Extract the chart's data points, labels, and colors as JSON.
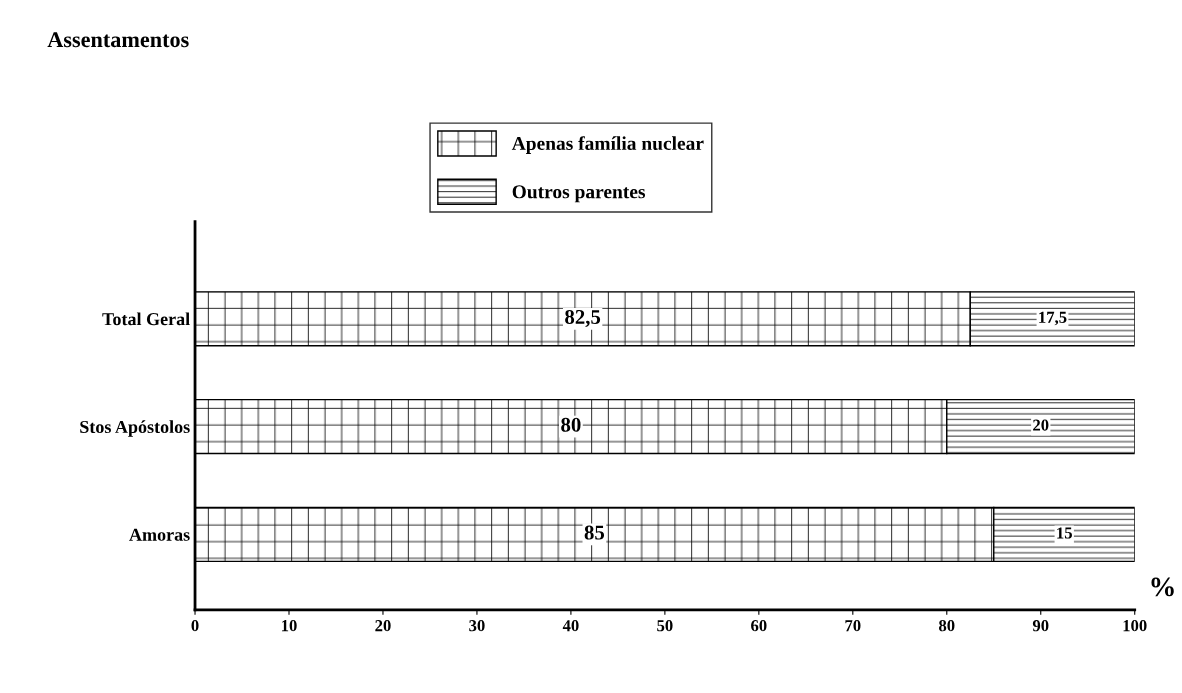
{
  "chart_data": {
    "type": "bar",
    "orientation": "horizontal",
    "stacked": true,
    "annotations": [
      "Assentamentos"
    ],
    "xlabel": "%",
    "categories": [
      "Total Geral",
      "Stos Apóstolos",
      "Amoras"
    ],
    "series": [
      {
        "name": "Apenas família nuclear",
        "color": "#000000",
        "values": [
          82.5,
          80,
          85
        ],
        "value_labels": [
          "82,5",
          "80",
          "85"
        ]
      },
      {
        "name": "Outros parentes",
        "color": "#000000",
        "values": [
          17.5,
          20,
          15
        ],
        "value_labels": [
          "17,5",
          "20",
          "15"
        ]
      }
    ],
    "xlim": [
      0,
      100
    ],
    "xticks": [
      0,
      10,
      20,
      30,
      40,
      50,
      60,
      70,
      80,
      90,
      100
    ],
    "grid": false,
    "legend": "top"
  }
}
